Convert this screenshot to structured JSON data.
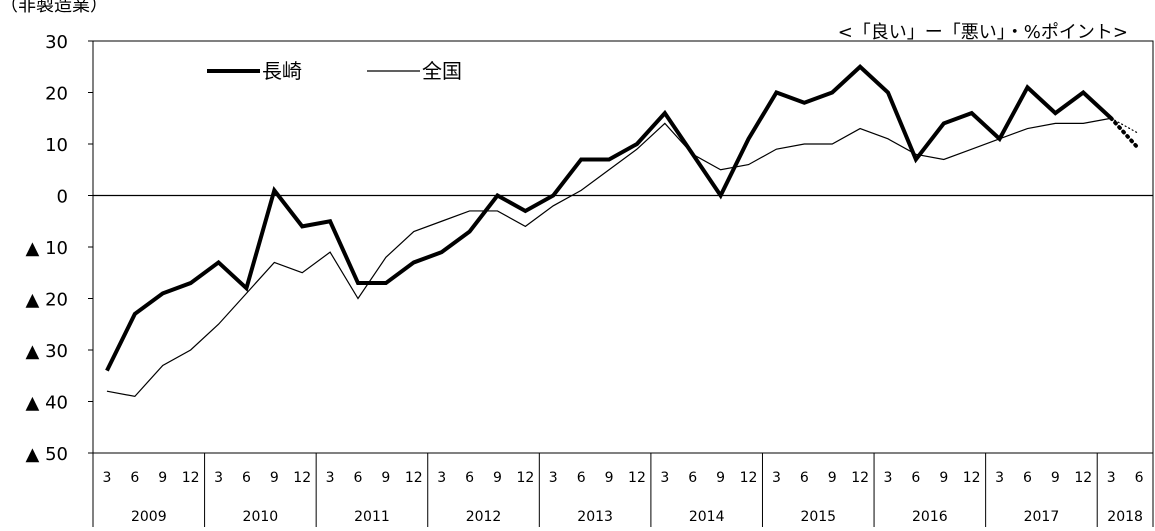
{
  "chart_data": {
    "type": "line",
    "subtitle_left": "（非製造業）",
    "unit_note": "<「良い」ー「悪い」・%ポイント>",
    "xlabel": "",
    "ylabel": "",
    "ylim": [
      -50,
      30
    ],
    "yticks": [
      30,
      20,
      10,
      0,
      -10,
      -20,
      -30,
      -40,
      -50
    ],
    "ytick_labels": [
      "30",
      "20",
      "10",
      "0",
      "▲ 10",
      "▲ 20",
      "▲ 30",
      "▲ 40",
      "▲ 50"
    ],
    "grid": false,
    "legend_position": "top-left",
    "months": [
      "3",
      "6",
      "9",
      "12",
      "3",
      "6",
      "9",
      "12",
      "3",
      "6",
      "9",
      "12",
      "3",
      "6",
      "9",
      "12",
      "3",
      "6",
      "9",
      "12",
      "3",
      "6",
      "9",
      "12",
      "3",
      "6",
      "9",
      "12",
      "3",
      "6",
      "9",
      "12",
      "3",
      "6",
      "9",
      "12",
      "3",
      "6"
    ],
    "years": [
      {
        "label": "2009",
        "count": 4
      },
      {
        "label": "2010",
        "count": 4
      },
      {
        "label": "2011",
        "count": 4
      },
      {
        "label": "2012",
        "count": 4
      },
      {
        "label": "2013",
        "count": 4
      },
      {
        "label": "2014",
        "count": 4
      },
      {
        "label": "2015",
        "count": 4
      },
      {
        "label": "2016",
        "count": 4
      },
      {
        "label": "2017",
        "count": 4
      },
      {
        "label": "2018",
        "count": 2
      }
    ],
    "series": [
      {
        "name": "長崎",
        "color": "#000000",
        "style": "bold",
        "values": [
          -34,
          -23,
          -19,
          -17,
          -13,
          -18,
          1,
          -6,
          -5,
          -17,
          -17,
          -13,
          -11,
          -7,
          0,
          -3,
          0,
          7,
          7,
          10,
          16,
          8,
          0,
          11,
          20,
          18,
          20,
          25,
          20,
          7,
          14,
          16,
          11,
          21,
          16,
          20,
          15,
          9
        ],
        "forecast_from_index": 36
      },
      {
        "name": "全国",
        "color": "#000000",
        "style": "thin",
        "values": [
          -38,
          -39,
          -33,
          -30,
          -25,
          -19,
          -13,
          -15,
          -11,
          -20,
          -12,
          -7,
          -5,
          -3,
          -3,
          -6,
          -2,
          1,
          5,
          9,
          14,
          8,
          5,
          6,
          9,
          10,
          10,
          13,
          11,
          8,
          7,
          9,
          11,
          13,
          14,
          14,
          15,
          12
        ],
        "forecast_from_index": 36
      }
    ]
  }
}
